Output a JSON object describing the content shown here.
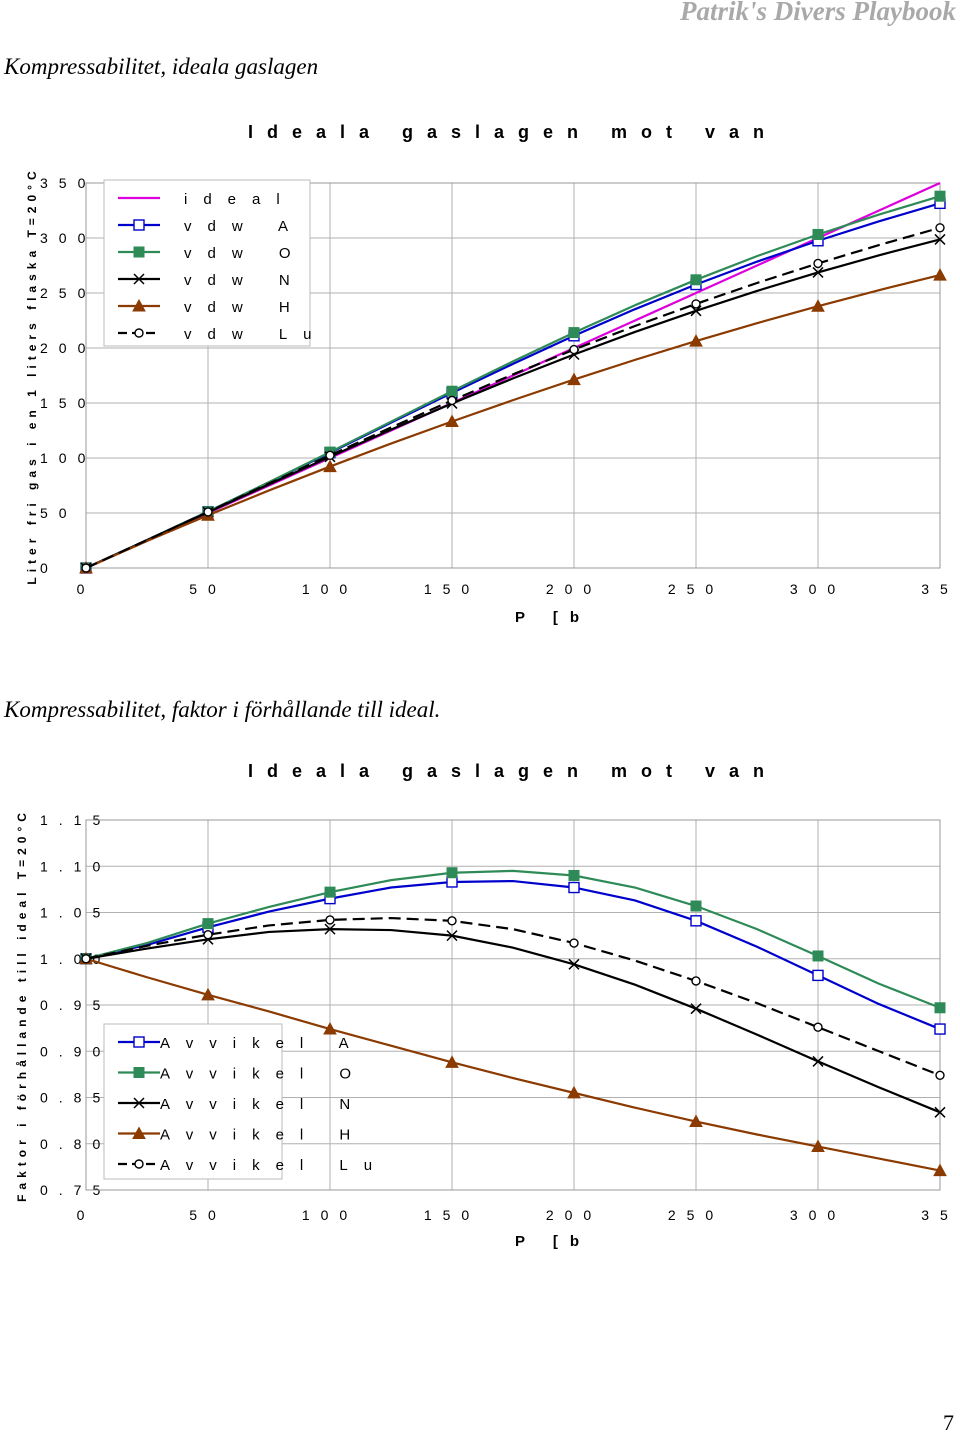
{
  "header": {
    "brand": "Patrik's Divers Playbook"
  },
  "headings": {
    "first": "Kompressabilitet, ideala gaslagen",
    "second": "Kompressabilitet, faktor i förhållande till ideal."
  },
  "page_number": "7",
  "chart_data": [
    {
      "type": "line",
      "title": "Ideala gaslagen mot van",
      "xlabel": "P [b",
      "ylabel": "Liter fri gas i en 1 liters flaska T=20°C",
      "xlim": [
        0,
        350
      ],
      "ylim": [
        0,
        350
      ],
      "x_ticks": [
        "0",
        "50",
        "100",
        "150",
        "200",
        "250",
        "300",
        "35"
      ],
      "y_ticks": [
        "0",
        "50",
        "100",
        "150",
        "200",
        "250",
        "300",
        "350"
      ],
      "grid": true,
      "legend": "top-left",
      "series": [
        {
          "name": "ideal",
          "color": "#dd00dd",
          "marker": "none",
          "dash": false,
          "x": [
            0,
            50,
            100,
            150,
            200,
            250,
            300,
            350
          ],
          "y": [
            0,
            50,
            100,
            150,
            200,
            250,
            300,
            350
          ]
        },
        {
          "name": "vdw A",
          "color": "#0000cc",
          "marker": "square-open",
          "dash": false,
          "x": [
            0,
            25,
            50,
            75,
            100,
            125,
            150,
            175,
            200,
            225,
            250,
            275,
            300,
            325,
            350
          ],
          "y": [
            0,
            25.3,
            51.2,
            77.8,
            104.8,
            132.1,
            159.2,
            185.6,
            211.1,
            235.3,
            257.7,
            278.5,
            297.5,
            315.2,
            331.5
          ]
        },
        {
          "name": "vdw O",
          "color": "#2e8b57",
          "marker": "square-filled",
          "dash": false,
          "x": [
            0,
            25,
            50,
            75,
            100,
            125,
            150,
            175,
            200,
            225,
            250,
            275,
            300,
            325,
            350
          ],
          "y": [
            0,
            25.4,
            51.2,
            78.1,
            105.4,
            133.0,
            160.7,
            187.8,
            214.0,
            238.9,
            262.0,
            283.5,
            303.2,
            321.3,
            338.0
          ]
        },
        {
          "name": "vdw N",
          "color": "#000000",
          "marker": "x",
          "dash": false,
          "x": [
            0,
            25,
            50,
            75,
            100,
            125,
            150,
            175,
            200,
            225,
            250,
            275,
            300,
            325,
            350
          ],
          "y": [
            0,
            25.3,
            50.7,
            76.0,
            101.1,
            125.8,
            149.6,
            172.4,
            194.1,
            214.6,
            233.8,
            251.9,
            268.7,
            284.3,
            298.7
          ]
        },
        {
          "name": "vdw H",
          "color": "#8b3a00",
          "marker": "triangle-filled",
          "dash": false,
          "x": [
            0,
            25,
            50,
            75,
            100,
            125,
            150,
            175,
            200,
            225,
            250,
            275,
            300,
            325,
            350
          ],
          "y": [
            0,
            24.5,
            48.0,
            70.5,
            92.2,
            113.1,
            133.2,
            152.6,
            171.3,
            189.2,
            206.3,
            222.6,
            238.0,
            252.6,
            266.3
          ]
        },
        {
          "name": "vdw Lu",
          "color": "#000000",
          "marker": "circle-open",
          "dash": true,
          "x": [
            0,
            25,
            50,
            75,
            100,
            125,
            150,
            175,
            200,
            225,
            250,
            275,
            300,
            325,
            350
          ],
          "y": [
            0,
            25.4,
            51.0,
            76.8,
            102.4,
            127.7,
            152.3,
            176.0,
            198.6,
            220.0,
            240.1,
            259.1,
            276.9,
            293.6,
            309.3
          ]
        }
      ],
      "legend_entries": [
        "ideal",
        "vdw A",
        "vdw O",
        "vdw N",
        "vdw H",
        "vdw Lu"
      ]
    },
    {
      "type": "line",
      "title": "Ideala gaslagen mot van",
      "xlabel": "P [b",
      "ylabel": "Faktor i förhållande till ideal T=20°C",
      "xlim": [
        0,
        350
      ],
      "ylim": [
        0.75,
        1.15
      ],
      "x_ticks": [
        "0",
        "50",
        "100",
        "150",
        "200",
        "250",
        "300",
        "35"
      ],
      "y_ticks": [
        "0.75",
        "0.80",
        "0.85",
        "0.90",
        "0.95",
        "1.00",
        "1.05",
        "1.10",
        "1.15"
      ],
      "grid": true,
      "legend": "bottom-left",
      "series": [
        {
          "name": "Avvikel A",
          "color": "#0000cc",
          "marker": "square-open",
          "dash": false,
          "x": [
            0,
            25,
            50,
            75,
            100,
            125,
            150,
            175,
            200,
            225,
            250,
            275,
            300,
            325,
            350
          ],
          "y": [
            1.0,
            1.015,
            1.034,
            1.051,
            1.065,
            1.077,
            1.083,
            1.084,
            1.077,
            1.063,
            1.041,
            1.013,
            0.982,
            0.951,
            0.924
          ]
        },
        {
          "name": "Avvikel O",
          "color": "#2e8b57",
          "marker": "square-filled",
          "dash": false,
          "x": [
            0,
            25,
            50,
            75,
            100,
            125,
            150,
            175,
            200,
            225,
            250,
            275,
            300,
            325,
            350
          ],
          "y": [
            1.0,
            1.017,
            1.038,
            1.056,
            1.072,
            1.085,
            1.093,
            1.095,
            1.09,
            1.077,
            1.057,
            1.032,
            1.003,
            0.973,
            0.947
          ]
        },
        {
          "name": "Avvikel N",
          "color": "#000000",
          "marker": "x",
          "dash": false,
          "x": [
            0,
            25,
            50,
            75,
            100,
            125,
            150,
            175,
            200,
            225,
            250,
            275,
            300,
            325,
            350
          ],
          "y": [
            1.0,
            1.011,
            1.021,
            1.029,
            1.032,
            1.031,
            1.025,
            1.012,
            0.994,
            0.972,
            0.946,
            0.918,
            0.889,
            0.861,
            0.834
          ]
        },
        {
          "name": "Avvikel H",
          "color": "#8b3a00",
          "marker": "triangle-filled",
          "dash": false,
          "x": [
            0,
            25,
            50,
            75,
            100,
            125,
            150,
            175,
            200,
            225,
            250,
            275,
            300,
            325,
            350
          ],
          "y": [
            1.0,
            0.98,
            0.961,
            0.943,
            0.924,
            0.906,
            0.888,
            0.871,
            0.855,
            0.839,
            0.824,
            0.81,
            0.797,
            0.784,
            0.771
          ]
        },
        {
          "name": "Avvikel Lu",
          "color": "#000000",
          "marker": "circle-open",
          "dash": true,
          "x": [
            0,
            25,
            50,
            75,
            100,
            125,
            150,
            175,
            200,
            225,
            250,
            275,
            300,
            325,
            350
          ],
          "y": [
            1.0,
            1.014,
            1.026,
            1.036,
            1.042,
            1.044,
            1.041,
            1.032,
            1.017,
            0.998,
            0.976,
            0.952,
            0.926,
            0.9,
            0.874
          ]
        }
      ],
      "legend_entries": [
        "Avvikel A",
        "Avvikel O",
        "Avvikel N",
        "Avvikel H",
        "Avvikel Lu"
      ]
    }
  ]
}
